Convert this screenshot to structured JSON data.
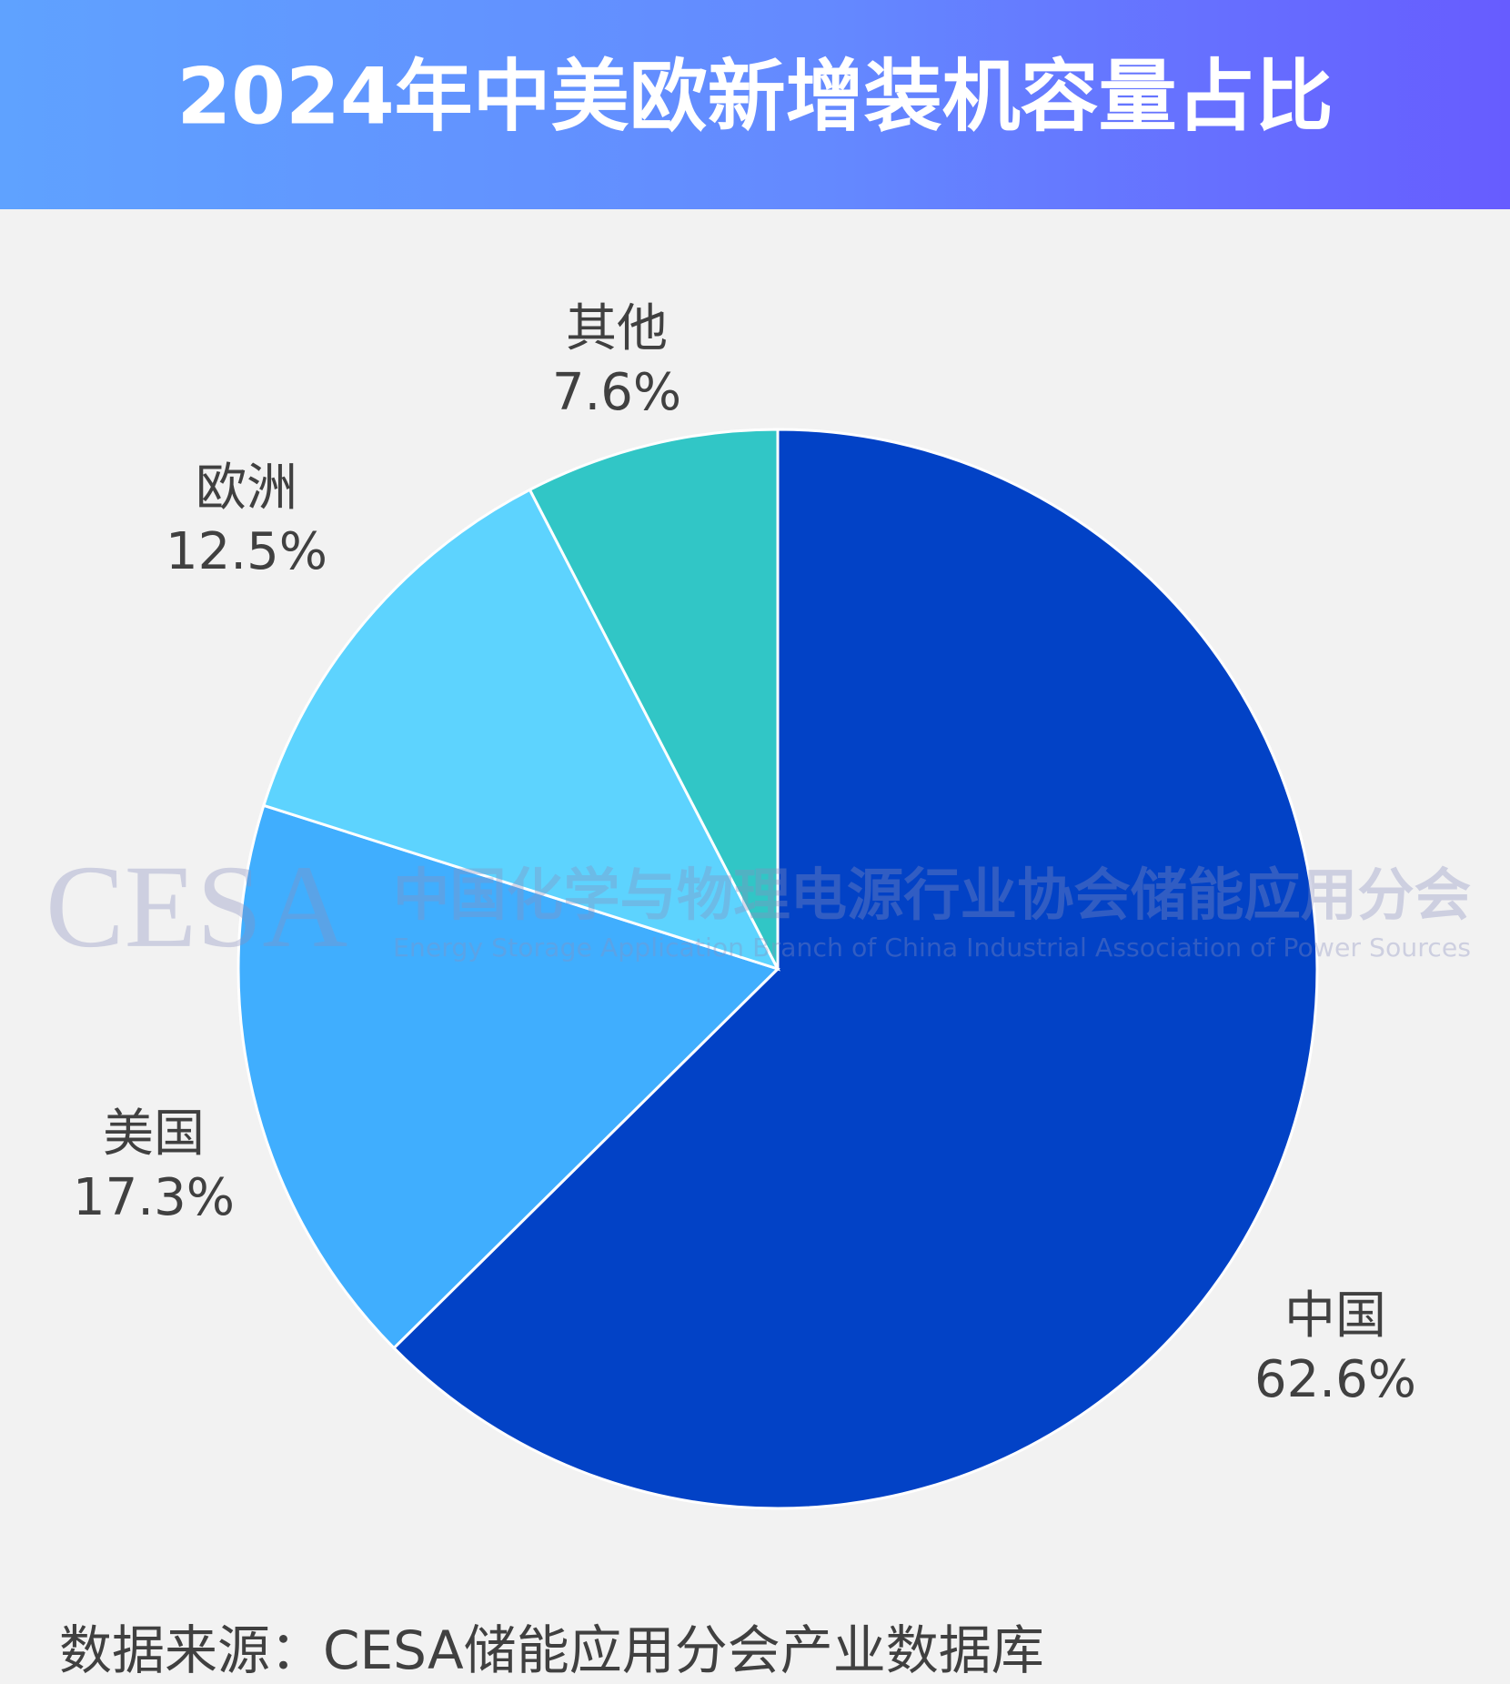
{
  "chart_data": {
    "type": "pie",
    "title": "2024年中美欧新增装机容量占比",
    "categories": [
      "中国",
      "美国",
      "欧洲",
      "其他"
    ],
    "values": [
      62.6,
      17.3,
      12.5,
      7.6
    ],
    "value_labels": [
      "62.6%",
      "17.3%",
      "12.5%",
      "7.6%"
    ],
    "colors": [
      "#0242c6",
      "#40aefe",
      "#5dd3fe",
      "#31c6c6"
    ],
    "source": "数据来源：CESA储能应用分会产业数据库",
    "watermark": {
      "logo": "CESA",
      "name_cn": "中国化学与物理电源行业协会储能应用分会",
      "name_en": "Energy Storage Application Branch of China Industrial Association of Power Sources"
    }
  }
}
